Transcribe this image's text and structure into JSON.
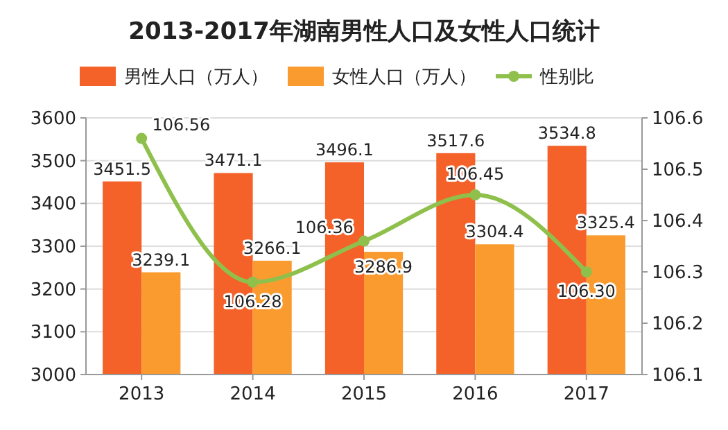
{
  "chart_data": {
    "type": "bar",
    "title": "2013-2017年湖南男性人口及女性人口统计",
    "categories": [
      "2013",
      "2014",
      "2015",
      "2016",
      "2017"
    ],
    "series": [
      {
        "name": "男性人口（万人）",
        "color": "#f4622a",
        "values": [
          3451.5,
          3471.1,
          3496.1,
          3517.6,
          3534.8
        ]
      },
      {
        "name": "女性人口（万人）",
        "color": "#f99b2f",
        "values": [
          3239.1,
          3266.1,
          3286.9,
          3304.4,
          3325.4
        ]
      },
      {
        "name": "性别比",
        "type": "line",
        "axis": "y2",
        "color": "#8fc04c",
        "values": [
          106.56,
          106.28,
          106.36,
          106.45,
          106.3
        ],
        "value_labels": [
          "106.56",
          "106.28",
          "106.36",
          "106.45",
          "106.30"
        ]
      }
    ],
    "ylim": [
      3000,
      3600
    ],
    "yticks": [
      3000,
      3100,
      3200,
      3300,
      3400,
      3500,
      3600
    ],
    "y2lim": [
      106.1,
      106.6
    ],
    "y2ticks": [
      106.1,
      106.2,
      106.3,
      106.4,
      106.5,
      106.6
    ],
    "grid": "y",
    "legend": "top",
    "marker": "circle",
    "data_labels": true
  }
}
